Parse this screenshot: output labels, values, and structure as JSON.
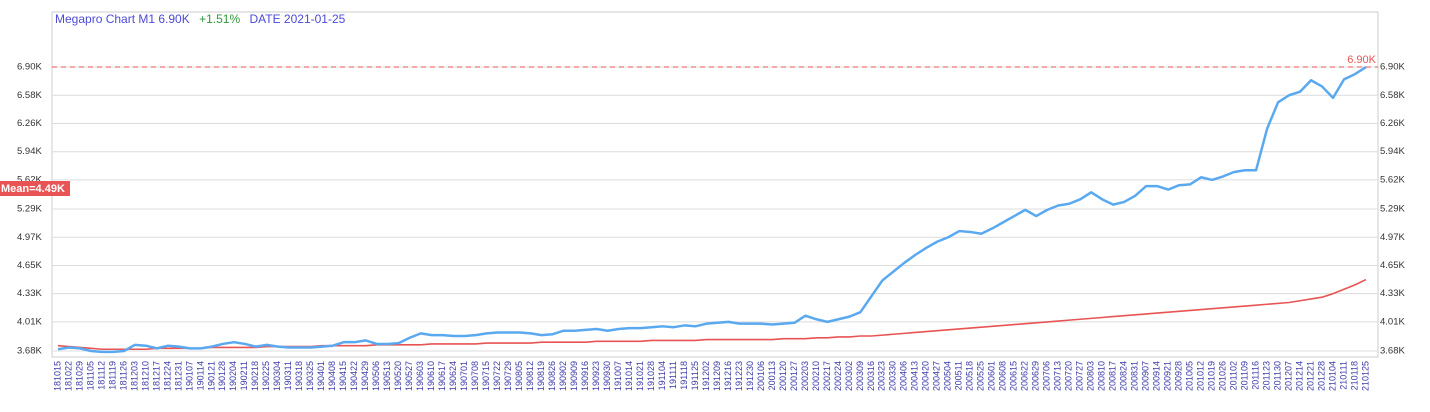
{
  "chart_data": {
    "type": "line",
    "title": "Megapro Chart M1 6.90K",
    "change": "+1.51%",
    "date_label": "DATE 2021-01-25",
    "mean_label": "Mean=4.49K",
    "reference_line": {
      "value": 6900,
      "label": "6.90K"
    },
    "categories": [
      "181015",
      "181022",
      "181029",
      "181105",
      "181112",
      "181119",
      "181126",
      "181203",
      "181210",
      "181217",
      "181224",
      "181231",
      "190107",
      "190114",
      "190121",
      "190128",
      "190204",
      "190211",
      "190218",
      "190225",
      "190304",
      "190311",
      "190318",
      "190325",
      "190401",
      "190408",
      "190415",
      "190422",
      "190429",
      "190506",
      "190513",
      "190520",
      "190527",
      "190603",
      "190610",
      "190617",
      "190624",
      "190701",
      "190708",
      "190715",
      "190722",
      "190729",
      "190805",
      "190812",
      "190819",
      "190826",
      "190902",
      "190909",
      "190916",
      "190923",
      "190930",
      "191007",
      "191014",
      "191021",
      "191028",
      "191104",
      "191111",
      "191118",
      "191125",
      "191202",
      "191209",
      "191216",
      "191223",
      "191230",
      "200106",
      "200113",
      "200120",
      "200127",
      "200203",
      "200210",
      "200217",
      "200224",
      "200302",
      "200309",
      "200316",
      "200323",
      "200330",
      "200406",
      "200413",
      "200420",
      "200427",
      "200504",
      "200511",
      "200518",
      "200525",
      "200601",
      "200608",
      "200615",
      "200622",
      "200629",
      "200706",
      "200713",
      "200720",
      "200727",
      "200803",
      "200810",
      "200817",
      "200824",
      "200831",
      "200907",
      "200914",
      "200921",
      "200928",
      "201005",
      "201012",
      "201019",
      "201026",
      "201102",
      "201109",
      "201116",
      "201123",
      "201130",
      "201207",
      "201214",
      "201221",
      "201228",
      "210104",
      "210111",
      "210118",
      "210125"
    ],
    "series": [
      {
        "color": "#5aa9f0",
        "values": [
          3700,
          3720,
          3710,
          3680,
          3670,
          3670,
          3680,
          3750,
          3740,
          3710,
          3740,
          3730,
          3710,
          3710,
          3730,
          3760,
          3780,
          3760,
          3730,
          3750,
          3730,
          3720,
          3720,
          3720,
          3730,
          3740,
          3780,
          3780,
          3800,
          3760,
          3760,
          3770,
          3830,
          3880,
          3860,
          3860,
          3850,
          3850,
          3860,
          3880,
          3890,
          3890,
          3890,
          3880,
          3860,
          3870,
          3910,
          3910,
          3920,
          3930,
          3910,
          3930,
          3940,
          3940,
          3950,
          3960,
          3950,
          3970,
          3960,
          3990,
          4000,
          4010,
          3990,
          3990,
          3990,
          3980,
          3990,
          4000,
          4080,
          4040,
          4010,
          4040,
          4070,
          4120,
          4300,
          4480,
          4580,
          4680,
          4770,
          4850,
          4920,
          4970,
          5040,
          5030,
          5010,
          5070,
          5140,
          5210,
          5280,
          5210,
          5280,
          5330,
          5350,
          5400,
          5480,
          5400,
          5340,
          5370,
          5440,
          5550,
          5550,
          5510,
          5560,
          5570,
          5650,
          5620,
          5660,
          5710,
          5730,
          5730,
          6200,
          6500,
          6580,
          6620,
          6750,
          6680,
          6550,
          6760,
          6820,
          6900
        ]
      },
      {
        "color": "#e85454",
        "values": [
          3740,
          3730,
          3720,
          3710,
          3700,
          3700,
          3700,
          3700,
          3700,
          3710,
          3710,
          3710,
          3710,
          3710,
          3720,
          3720,
          3720,
          3720,
          3720,
          3730,
          3730,
          3730,
          3730,
          3730,
          3740,
          3740,
          3740,
          3740,
          3740,
          3750,
          3750,
          3750,
          3750,
          3750,
          3760,
          3760,
          3760,
          3760,
          3760,
          3770,
          3770,
          3770,
          3770,
          3770,
          3780,
          3780,
          3780,
          3780,
          3780,
          3790,
          3790,
          3790,
          3790,
          3790,
          3800,
          3800,
          3800,
          3800,
          3800,
          3810,
          3810,
          3810,
          3810,
          3810,
          3810,
          3810,
          3820,
          3820,
          3820,
          3830,
          3830,
          3840,
          3840,
          3850,
          3850,
          3860,
          3870,
          3880,
          3890,
          3900,
          3910,
          3920,
          3930,
          3940,
          3950,
          3960,
          3970,
          3980,
          3990,
          4000,
          4010,
          4020,
          4030,
          4040,
          4050,
          4060,
          4070,
          4080,
          4090,
          4100,
          4110,
          4120,
          4130,
          4140,
          4150,
          4160,
          4170,
          4180,
          4190,
          4200,
          4210,
          4220,
          4230,
          4250,
          4270,
          4290,
          4330,
          4380,
          4430,
          4490
        ]
      }
    ],
    "ylim": [
      3612,
      7524
    ],
    "yticks": [
      {
        "value": 3680,
        "label": "3.68K"
      },
      {
        "value": 4010,
        "label": "4.01K"
      },
      {
        "value": 4330,
        "label": "4.33K"
      },
      {
        "value": 4650,
        "label": "4.65K"
      },
      {
        "value": 4970,
        "label": "4.97K"
      },
      {
        "value": 5290,
        "label": "5.29K"
      },
      {
        "value": 5620,
        "label": "5.62K"
      },
      {
        "value": 5940,
        "label": "5.94K"
      },
      {
        "value": 6260,
        "label": "6.26K"
      },
      {
        "value": 6580,
        "label": "6.58K"
      },
      {
        "value": 6900,
        "label": "6.90K"
      }
    ],
    "grid": true
  }
}
